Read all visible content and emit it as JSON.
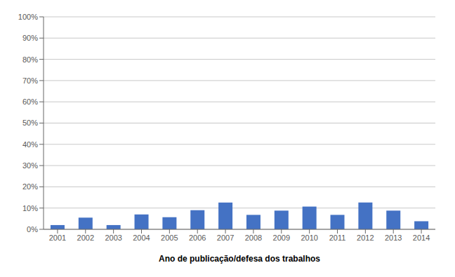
{
  "chart_data": {
    "type": "bar",
    "xlabel": "Ano de publicação/defesa dos trabalhos",
    "categories": [
      "2001",
      "2002",
      "2003",
      "2004",
      "2005",
      "2006",
      "2007",
      "2008",
      "2009",
      "2010",
      "2011",
      "2012",
      "2013",
      "2014"
    ],
    "values": [
      0.02,
      0.055,
      0.02,
      0.07,
      0.057,
      0.09,
      0.126,
      0.068,
      0.088,
      0.107,
      0.068,
      0.126,
      0.088,
      0.038
    ],
    "color": "#4472C4",
    "ylim": [
      0,
      1.0
    ],
    "yticks": [
      {
        "value": 0.0,
        "label": "0%"
      },
      {
        "value": 0.1,
        "label": "10%"
      },
      {
        "value": 0.2,
        "label": "20%"
      },
      {
        "value": 0.3,
        "label": "30%"
      },
      {
        "value": 0.4,
        "label": "40%"
      },
      {
        "value": 0.5,
        "label": "50%"
      },
      {
        "value": 0.6,
        "label": "60%"
      },
      {
        "value": 0.7,
        "label": "70%"
      },
      {
        "value": 0.8,
        "label": "80%"
      },
      {
        "value": 0.9,
        "label": "90%"
      },
      {
        "value": 1.0,
        "label": "100%"
      }
    ],
    "grid": true
  }
}
